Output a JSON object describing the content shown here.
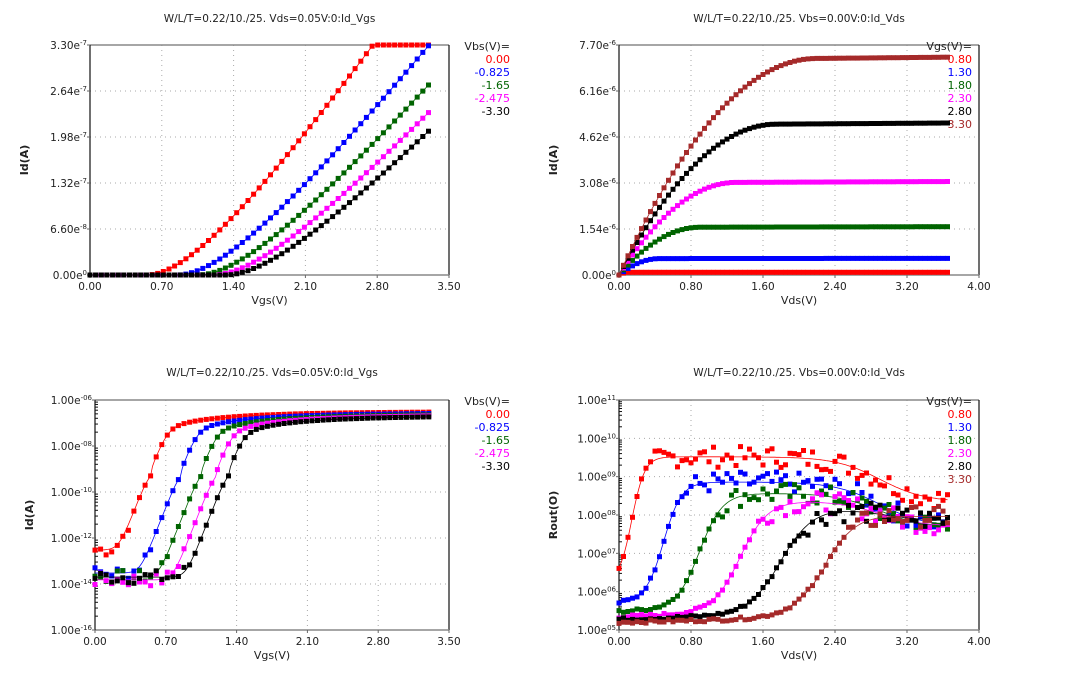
{
  "chart_data": [
    {
      "id": "idvgs_linear",
      "type": "scatter",
      "title": "W/L/T=0.22/10./25.  Vds=0.05V:0:Id_Vgs",
      "xlabel": "Vgs(V)",
      "ylabel": "Id(A)",
      "xlim": [
        0,
        3.5
      ],
      "ylim": [
        0,
        3.3e-07
      ],
      "yscale": "linear",
      "grid": true,
      "xticks": [
        "0.00",
        "0.70",
        "1.40",
        "2.10",
        "2.80",
        "3.50"
      ],
      "yticks": [
        [
          "0.00e",
          "0"
        ],
        [
          "6.60e",
          "-8"
        ],
        [
          "1.32e",
          "-7"
        ],
        [
          "1.98e",
          "-7"
        ],
        [
          "2.64e",
          "-7"
        ],
        [
          "3.30e",
          "-7"
        ]
      ],
      "legend_title": "Vbs(V)=",
      "legend_position": "right",
      "series": [
        {
          "name": "0.00",
          "color": "#ff0000",
          "vth": 0.55,
          "k": 1.55e-07,
          "sat": 3.1e-07
        },
        {
          "name": "-0.825",
          "color": "#0000ff",
          "vth": 0.85,
          "k": 1.35e-07,
          "sat": 2.75e-07
        },
        {
          "name": "-1.65",
          "color": "#006400",
          "vth": 1.05,
          "k": 1.25e-07,
          "sat": 2.45e-07
        },
        {
          "name": "-2.475",
          "color": "#ff00ff",
          "vth": 1.2,
          "k": 1.17e-07,
          "sat": 2.25e-07
        },
        {
          "name": "-3.30",
          "color": "#000000",
          "vth": 1.32,
          "k": 1.12e-07,
          "sat": 2.05e-07
        }
      ],
      "xrange_points": [
        0,
        3.3,
        0.055
      ]
    },
    {
      "id": "idvds_linear",
      "type": "scatter",
      "title": "W/L/T=0.22/10./25.  Vbs=0.00V:0:Id_Vds",
      "xlabel": "Vds(V)",
      "ylabel": "Id(A)",
      "xlim": [
        0,
        4.0
      ],
      "ylim": [
        0,
        7.7e-06
      ],
      "yscale": "linear",
      "grid": true,
      "xticks": [
        "0.00",
        "0.80",
        "1.60",
        "2.40",
        "3.20",
        "4.00"
      ],
      "yticks": [
        [
          "0.00e",
          "0"
        ],
        [
          "1.54e",
          "-6"
        ],
        [
          "3.08e",
          "-6"
        ],
        [
          "4.62e",
          "-6"
        ],
        [
          "6.16e",
          "-6"
        ],
        [
          "7.70e",
          "-6"
        ]
      ],
      "legend_title": "Vgs(V)=",
      "legend_position": "right",
      "series": [
        {
          "name": "0.80",
          "color": "#ff0000",
          "isat": 9e-08,
          "vdsat": 0.1
        },
        {
          "name": "1.30",
          "color": "#0000ff",
          "isat": 5.5e-07,
          "vdsat": 0.45
        },
        {
          "name": "1.80",
          "color": "#006400",
          "isat": 1.6e-06,
          "vdsat": 0.9
        },
        {
          "name": "2.30",
          "color": "#ff00ff",
          "isat": 3.1e-06,
          "vdsat": 1.3
        },
        {
          "name": "2.80",
          "color": "#000000",
          "isat": 5.05e-06,
          "vdsat": 1.75
        },
        {
          "name": "3.30",
          "color": "#a52a2a",
          "isat": 7.25e-06,
          "vdsat": 2.2
        }
      ],
      "xrange_points": [
        0,
        3.65,
        0.05
      ]
    },
    {
      "id": "idvgs_log",
      "type": "scatter",
      "title": "W/L/T=0.22/10./25.  Vds=0.05V:0:Id_Vgs",
      "xlabel": "Vgs(V)",
      "ylabel": "Id(A)",
      "xlim": [
        0,
        3.5
      ],
      "ylim": [
        1e-16,
        1e-06
      ],
      "yscale": "log",
      "grid": true,
      "xticks": [
        "0.00",
        "0.70",
        "1.40",
        "2.10",
        "2.80",
        "3.50"
      ],
      "yticks": [
        [
          "1.00e",
          "-16"
        ],
        [
          "1.00e",
          "-14"
        ],
        [
          "1.00e",
          "-12"
        ],
        [
          "1.00e",
          "-10"
        ],
        [
          "1.00e",
          "-08"
        ],
        [
          "1.00e",
          "-06"
        ]
      ],
      "legend_title": "Vbs(V)=",
      "legend_position": "right",
      "series": [
        {
          "name": "0.00",
          "color": "#ff0000",
          "vth": 0.55,
          "floor": 3e-13,
          "ss": 0.09,
          "sat": 3.1e-07
        },
        {
          "name": "-0.825",
          "color": "#0000ff",
          "vth": 0.85,
          "floor": 3e-14,
          "ss": 0.09,
          "sat": 2.75e-07
        },
        {
          "name": "-1.65",
          "color": "#006400",
          "vth": 1.05,
          "floor": 2e-14,
          "ss": 0.09,
          "sat": 2.45e-07
        },
        {
          "name": "-2.475",
          "color": "#ff00ff",
          "vth": 1.2,
          "floor": 1.5e-14,
          "ss": 0.09,
          "sat": 2.25e-07
        },
        {
          "name": "-3.30",
          "color": "#000000",
          "vth": 1.32,
          "floor": 2e-14,
          "ss": 0.09,
          "sat": 2.05e-07
        }
      ],
      "xrange_points": [
        0,
        3.3,
        0.055
      ]
    },
    {
      "id": "rout_vds",
      "type": "scatter",
      "title": "W/L/T=0.22/10./25.  Vbs=0.00V:0:Id_Vds",
      "xlabel": "Vds(V)",
      "ylabel": "Rout(O)",
      "xlim": [
        0,
        4.0
      ],
      "ylim": [
        100000.0,
        100000000000.0
      ],
      "yscale": "log",
      "grid": true,
      "xticks": [
        "0.00",
        "0.80",
        "1.60",
        "2.40",
        "3.20",
        "4.00"
      ],
      "yticks": [
        [
          "1.00e",
          "05"
        ],
        [
          "1.00e",
          "06"
        ],
        [
          "1.00e",
          "07"
        ],
        [
          "1.00e",
          "08"
        ],
        [
          "1.00e",
          "09"
        ],
        [
          "1.00e",
          "10"
        ],
        [
          "1.00e",
          "11"
        ]
      ],
      "legend_title": "Vgs(V)=",
      "legend_position": "right",
      "series": [
        {
          "name": "0.80",
          "color": "#ff0000",
          "r0": 2000000.0,
          "rmax": 2500000000.0,
          "vk": 0.15,
          "w": 0.05,
          "rend": 220000000.0
        },
        {
          "name": "1.30",
          "color": "#0000ff",
          "r0": 500000.0,
          "rmax": 550000000.0,
          "vk": 0.5,
          "w": 0.07,
          "rend": 50000000.0
        },
        {
          "name": "1.80",
          "color": "#006400",
          "r0": 300000.0,
          "rmax": 280000000.0,
          "vk": 0.9,
          "w": 0.09,
          "rend": 45000000.0
        },
        {
          "name": "2.30",
          "color": "#ff00ff",
          "r0": 220000.0,
          "rmax": 180000000.0,
          "vk": 1.35,
          "w": 0.11,
          "rend": 50000000.0
        },
        {
          "name": "2.80",
          "color": "#000000",
          "r0": 190000.0,
          "rmax": 120000000.0,
          "vk": 1.8,
          "w": 0.13,
          "rend": 70000000.0
        },
        {
          "name": "3.30",
          "color": "#a52a2a",
          "r0": 160000.0,
          "rmax": 80000000.0,
          "vk": 2.3,
          "w": 0.14,
          "rend": 90000000.0
        }
      ],
      "xrange_points": [
        0,
        3.65,
        0.05
      ]
    }
  ]
}
